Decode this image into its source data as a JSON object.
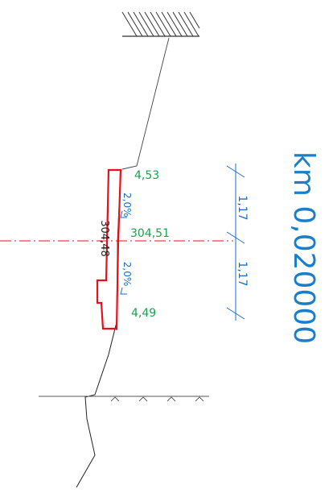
{
  "section": {
    "km_label": "km 0,020000",
    "crown_elevation": "304,51",
    "elevation_left": "4,53",
    "elevation_right": "4,49",
    "slope_left": "2,0%",
    "slope_right": "2,0%",
    "pavement_elevation": "304,48",
    "width_left": "1,17",
    "width_right": "1,17"
  },
  "colors": {
    "terrain": "#222222",
    "pavement": "#e8101a",
    "axis": "#e8101a",
    "annotation_green": "#1aa34a",
    "dimension_blue": "#1a6fc4",
    "km_blue": "#1a7fc8",
    "hatch": "#333333"
  }
}
